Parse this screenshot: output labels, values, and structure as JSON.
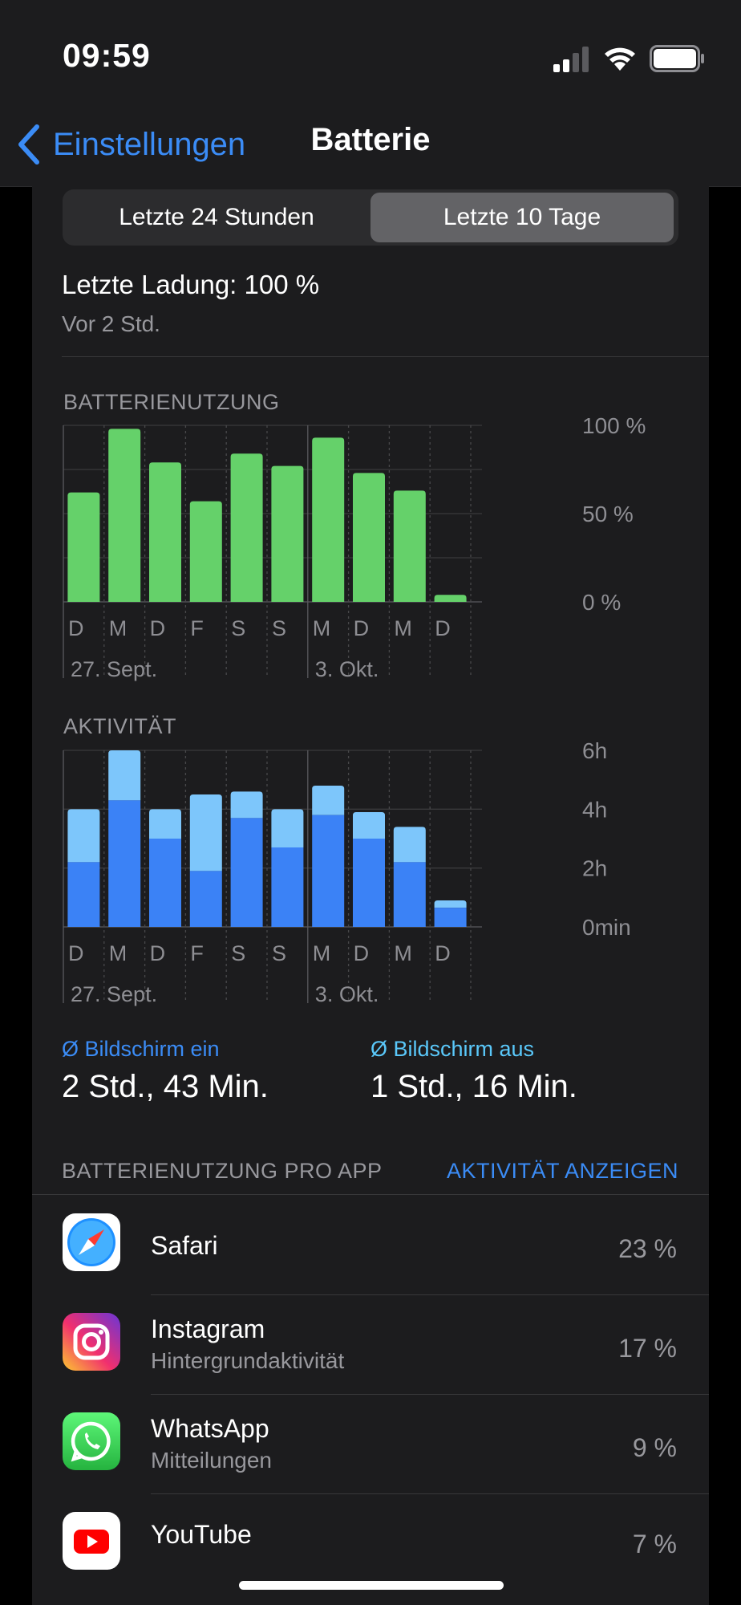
{
  "status": {
    "time": "09:59"
  },
  "nav": {
    "back_label": "Einstellungen",
    "title": "Batterie"
  },
  "segments": {
    "left": "Letzte 24 Stunden",
    "right": "Letzte 10 Tage",
    "selected": "right"
  },
  "charge": {
    "title": "Letzte Ladung: 100 %",
    "sub": "Vor 2 Std."
  },
  "colors": {
    "accent": "#3b8cf6",
    "battery_bar": "#65d16a",
    "screen_on": "#3b82f6",
    "screen_off": "#7dc6fb"
  },
  "battery_chart": {
    "label": "BATTERIENUTZUNG",
    "y_ticks": [
      "100 %",
      "50 %",
      "0 %"
    ],
    "x_labels": [
      "D",
      "M",
      "D",
      "F",
      "S",
      "S",
      "M",
      "D",
      "M",
      "D"
    ],
    "date_labels": [
      "27. Sept.",
      "3. Okt."
    ]
  },
  "activity_chart": {
    "label": "AKTIVITÄT",
    "y_ticks": [
      "6h",
      "4h",
      "2h",
      "0min"
    ],
    "x_labels": [
      "D",
      "M",
      "D",
      "F",
      "S",
      "S",
      "M",
      "D",
      "M",
      "D"
    ],
    "date_labels": [
      "27. Sept.",
      "3. Okt."
    ]
  },
  "chart_data": [
    {
      "type": "bar",
      "categories": [
        "D",
        "M",
        "D",
        "F",
        "S",
        "S",
        "M",
        "D",
        "M",
        "D"
      ],
      "values": [
        62,
        98,
        79,
        57,
        84,
        77,
        93,
        73,
        63,
        4
      ],
      "ylim": [
        0,
        100
      ],
      "title": "BATTERIENUTZUNG"
    },
    {
      "type": "bar",
      "stacked": true,
      "categories": [
        "D",
        "M",
        "D",
        "F",
        "S",
        "S",
        "M",
        "D",
        "M",
        "D"
      ],
      "series": [
        {
          "name": "Bildschirm ein",
          "values": [
            2.2,
            4.3,
            3.0,
            1.9,
            3.7,
            2.7,
            3.8,
            3.0,
            2.2,
            0.65
          ]
        },
        {
          "name": "Bildschirm aus",
          "values": [
            1.8,
            1.7,
            1.0,
            2.6,
            0.9,
            1.3,
            1.0,
            0.9,
            1.2,
            0.25
          ]
        }
      ],
      "ylim": [
        0,
        6
      ],
      "ylabel": "",
      "title": "AKTIVITÄT"
    }
  ],
  "averages": {
    "on_label": "Ø Bildschirm ein",
    "on_value": "2 Std., 43 Min.",
    "off_label": "Ø Bildschirm aus",
    "off_value": "1 Std., 16 Min."
  },
  "apps": {
    "section_label": "BATTERIENUTZUNG PRO APP",
    "show_activity": "AKTIVITÄT ANZEIGEN",
    "items": [
      {
        "name": "Safari",
        "sub": "",
        "pct": "23 %",
        "icon": "safari-icon"
      },
      {
        "name": "Instagram",
        "sub": "Hintergrundaktivität",
        "pct": "17 %",
        "icon": "instagram-icon"
      },
      {
        "name": "WhatsApp",
        "sub": "Mitteilungen",
        "pct": "9 %",
        "icon": "whatsapp-icon"
      },
      {
        "name": "YouTube",
        "sub": "",
        "pct": "7 %",
        "icon": "youtube-icon"
      }
    ]
  }
}
